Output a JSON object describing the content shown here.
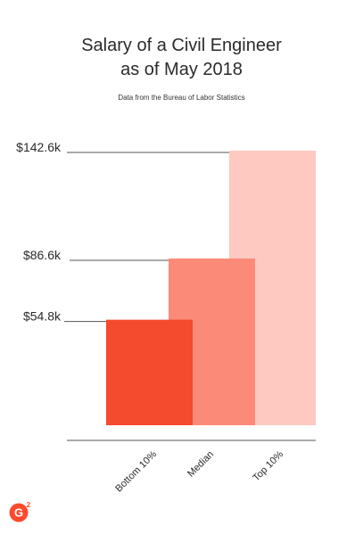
{
  "title_lines": [
    "Salary of a Civil Engineer",
    "as of May 2018"
  ],
  "subtitle": "Data from the Bureau of Labor Statistics",
  "colors": {
    "bottom": "#f44a2e",
    "median": "#fc8a78",
    "top": "#fec9c1",
    "text": "#2b2b2b",
    "axis": "#555555",
    "brand": "#ff492c"
  },
  "logo": {
    "icon": "g2-logo-icon"
  },
  "chart_data": {
    "type": "bar",
    "categories": [
      "Bottom 10%",
      "Median",
      "Top 10%"
    ],
    "values": [
      54.8,
      86.6,
      142.6
    ],
    "value_labels": [
      "$54.8k",
      "$86.6k",
      "$142.6k"
    ],
    "title": "Salary of a Civil Engineer as of May 2018",
    "subtitle": "Data from the Bureau of Labor Statistics",
    "xlabel": "",
    "ylabel": "",
    "unit": "$k",
    "grid": false,
    "legend": "none"
  }
}
